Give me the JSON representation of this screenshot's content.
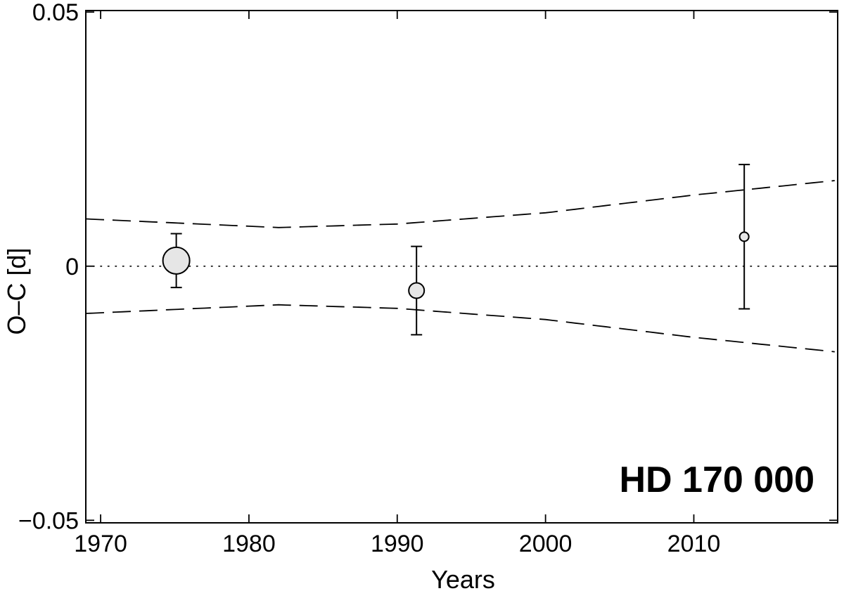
{
  "chart_data": {
    "type": "scatter",
    "xlabel": "Years",
    "ylabel": "O–C  [d]",
    "xlim": [
      1969,
      2019.7
    ],
    "ylim": [
      -0.0505,
      0.0503
    ],
    "xticks": [
      1970,
      1980,
      1990,
      2000,
      2010
    ],
    "xtick_labels": [
      "1970",
      "1980",
      "1990",
      "2000",
      "2010"
    ],
    "yticks": [
      -0.05,
      0,
      0.05
    ],
    "ytick_labels": [
      "−0.05",
      "0",
      "0.05"
    ],
    "annotation": "HD 170 000",
    "grid": false,
    "points": [
      {
        "x": 1975.1,
        "y": 0.0011,
        "yerr": 0.0053,
        "marker_size": "large"
      },
      {
        "x": 1991.3,
        "y": -0.0048,
        "yerr": 0.0087,
        "marker_size": "medium"
      },
      {
        "x": 2013.4,
        "y": 0.0058,
        "yerr": 0.0142,
        "marker_size": "small"
      }
    ],
    "envelope": {
      "style": "dashed",
      "min_year": 1982.0,
      "min_value": 0.0076,
      "upper": [
        [
          1969,
          0.0093
        ],
        [
          1982,
          0.0076
        ],
        [
          1990,
          0.0083
        ],
        [
          2000,
          0.0105
        ],
        [
          2010,
          0.014
        ],
        [
          2019.7,
          0.0169
        ]
      ],
      "lower": [
        [
          1969,
          -0.0093
        ],
        [
          1982,
          -0.0076
        ],
        [
          1990,
          -0.0083
        ],
        [
          2000,
          -0.0105
        ],
        [
          2010,
          -0.014
        ],
        [
          2019.7,
          -0.0169
        ]
      ]
    },
    "reference_line": {
      "y": 0,
      "style": "dotted"
    },
    "colors": {
      "marker_fill": "#e6e6e6",
      "stroke": "#000000"
    }
  }
}
